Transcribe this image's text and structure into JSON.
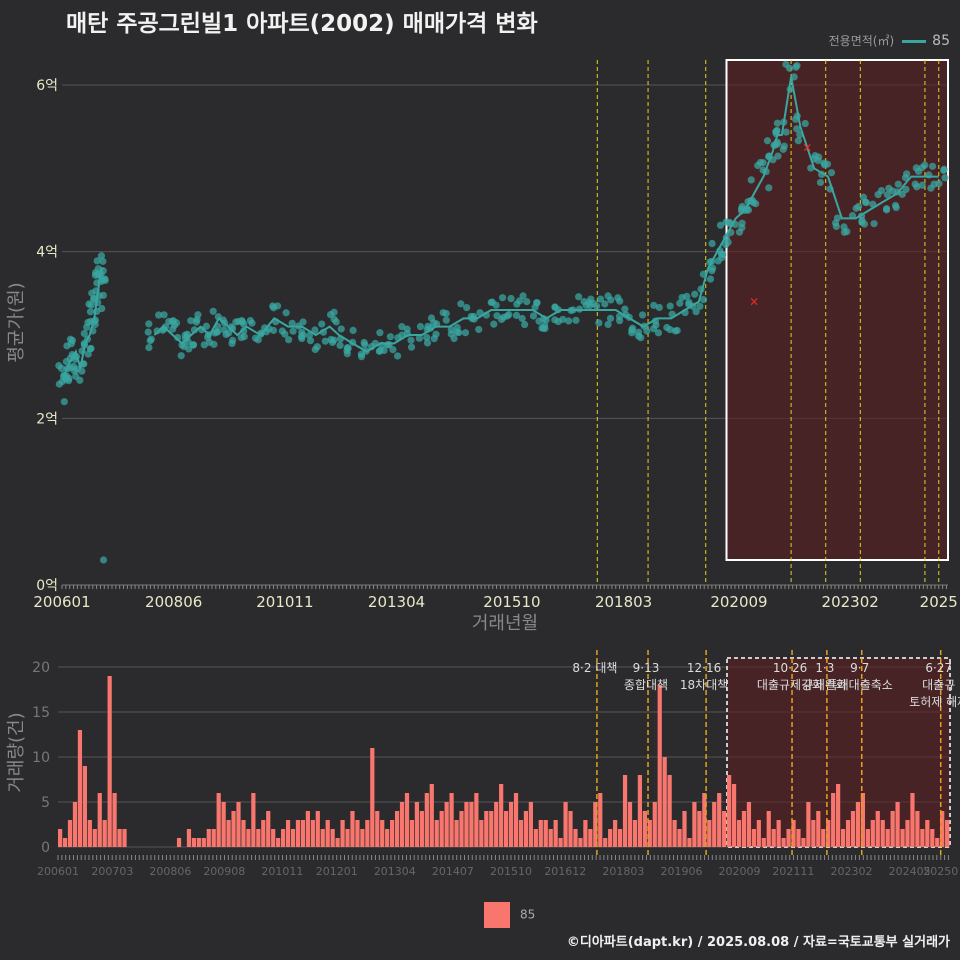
{
  "title": "매탄 주공그린빌1 아파트(2002) 매매가격 변화",
  "legend": {
    "label": "전용면적(㎡)",
    "value": "85"
  },
  "credit": "©디아파트(dapt.kr) / 2025.08.08 / 자료=국토교통부 실거래가",
  "colors": {
    "background": "#2b2b2d",
    "price": "#3aa6a0",
    "volume": "#f8766d",
    "policy": "#e5d21b",
    "highlight_box": "#ffffff",
    "highlight_fill": "#5a1e22",
    "outlier": "#ff2a2a"
  },
  "chart_data": [
    {
      "type": "scatter",
      "title": "매탄 주공그린빌1 아파트(2002) 매매가격 변화",
      "xlabel": "거래년월",
      "ylabel": "평균가(원)",
      "x_tick_labels": [
        "200601",
        "200806",
        "201011",
        "201304",
        "201510",
        "201803",
        "202009",
        "202302",
        "2025"
      ],
      "x_tick_positions": [
        2006.0,
        2008.42,
        2010.83,
        2013.25,
        2015.75,
        2018.17,
        2020.67,
        2023.08,
        2025.0
      ],
      "xlim": [
        2006.0,
        2025.2
      ],
      "ylim": [
        0,
        6.3
      ],
      "y_ticks": [
        0,
        2,
        4,
        6
      ],
      "y_tick_labels": [
        "0억",
        "2억",
        "4억",
        "6억"
      ],
      "series": [
        {
          "name": "85",
          "x": [
            2006.05,
            2006.1,
            2006.2,
            2006.3,
            2006.4,
            2006.5,
            2006.6,
            2006.7,
            2006.75,
            2006.8,
            2006.85,
            2006.9,
            2008.0,
            2008.2,
            2008.4,
            2008.6,
            2008.8,
            2009.0,
            2009.2,
            2009.4,
            2009.6,
            2009.8,
            2010.0,
            2010.3,
            2010.6,
            2010.9,
            2011.2,
            2011.5,
            2011.8,
            2012.0,
            2012.3,
            2012.6,
            2012.9,
            2013.2,
            2013.5,
            2013.8,
            2014.1,
            2014.4,
            2014.7,
            2015.0,
            2015.3,
            2015.6,
            2015.9,
            2016.2,
            2016.5,
            2016.8,
            2017.1,
            2017.4,
            2017.7,
            2018.0,
            2018.3,
            2018.6,
            2018.9,
            2019.2,
            2019.5,
            2019.8,
            2020.0,
            2020.2,
            2020.4,
            2020.6,
            2020.8,
            2021.0,
            2021.2,
            2021.4,
            2021.5,
            2021.6,
            2021.8,
            2022.0,
            2022.3,
            2022.6,
            2022.9,
            2023.2,
            2023.5,
            2023.8,
            2024.1,
            2024.4,
            2024.7,
            2025.0
          ],
          "y": [
            2.5,
            2.6,
            2.7,
            2.8,
            2.6,
            2.9,
            3.0,
            3.2,
            3.4,
            3.6,
            3.8,
            3.8,
            3.0,
            3.1,
            3.0,
            2.9,
            3.0,
            3.1,
            3.0,
            3.2,
            3.1,
            3.0,
            3.1,
            3.0,
            3.2,
            3.1,
            3.1,
            3.0,
            3.1,
            3.0,
            2.9,
            2.8,
            2.9,
            2.9,
            3.0,
            3.0,
            3.1,
            3.1,
            3.2,
            3.2,
            3.3,
            3.3,
            3.3,
            3.3,
            3.2,
            3.3,
            3.3,
            3.3,
            3.3,
            3.3,
            3.2,
            3.1,
            3.2,
            3.2,
            3.3,
            3.4,
            3.8,
            4.0,
            4.2,
            4.4,
            4.5,
            4.7,
            4.9,
            5.2,
            5.4,
            5.4,
            6.1,
            5.5,
            5.0,
            4.9,
            4.4,
            4.4,
            4.5,
            4.6,
            4.7,
            4.9,
            4.9,
            4.9
          ]
        }
      ],
      "outliers": [
        {
          "x": 2006.9,
          "y": 0.3
        },
        {
          "x": 2006.05,
          "y": 2.2
        }
      ],
      "red_markers": [
        {
          "x": 2021.0,
          "y": 3.4
        },
        {
          "x": 2022.15,
          "y": 5.25
        }
      ],
      "highlight_range": {
        "x": [
          2020.4,
          2025.2
        ],
        "y": [
          0.3,
          6.3
        ]
      },
      "policy_lines": [
        2017.6,
        2018.7,
        2019.95,
        2021.8,
        2022.55,
        2023.3,
        2024.7,
        2025.0
      ]
    },
    {
      "type": "bar",
      "xlabel": "",
      "ylabel": "거래량(건)",
      "ylim": [
        0,
        21
      ],
      "y_ticks": [
        0,
        5,
        10,
        15,
        20
      ],
      "x_tick_labels": [
        "200601",
        "200703",
        "200806",
        "200908",
        "201011",
        "201201",
        "201304",
        "201407",
        "201510",
        "201612",
        "201803",
        "201906",
        "202009",
        "202111",
        "202302",
        "202405",
        "20250"
      ],
      "x_tick_positions": [
        2006.0,
        2007.17,
        2008.42,
        2009.58,
        2010.83,
        2012.0,
        2013.25,
        2014.5,
        2015.75,
        2016.92,
        2018.17,
        2019.42,
        2020.67,
        2021.83,
        2023.08,
        2024.33,
        2025.0
      ],
      "xlim": [
        2006.0,
        2025.2
      ],
      "months": [
        2006.0,
        2025.2
      ],
      "values_sample": [
        2,
        1,
        3,
        5,
        13,
        9,
        3,
        2,
        6,
        3,
        19,
        6,
        2,
        2,
        0,
        0,
        0,
        0,
        0,
        0,
        0,
        0,
        0,
        0,
        1,
        0,
        2,
        1,
        1,
        1,
        2,
        2,
        6,
        5,
        3,
        4,
        5,
        3,
        2,
        6,
        2,
        3,
        4,
        2,
        1,
        2,
        3,
        2,
        3,
        3,
        4,
        3,
        4,
        2,
        3,
        2,
        1,
        3,
        2,
        4,
        3,
        2,
        3,
        11,
        4,
        3,
        2,
        3,
        4,
        5,
        6,
        3,
        5,
        4,
        6,
        7,
        3,
        4,
        5,
        6,
        3,
        4,
        5,
        5,
        6,
        3,
        4,
        4,
        5,
        7,
        4,
        5,
        6,
        3,
        4,
        5,
        2,
        3,
        3,
        2,
        3,
        1,
        5,
        4,
        2,
        1,
        3,
        2,
        5,
        6,
        1,
        2,
        3,
        2,
        8,
        5,
        3,
        8,
        4,
        3,
        5,
        18,
        10,
        8,
        3,
        2,
        4,
        1,
        5,
        4,
        6,
        3,
        5,
        6,
        4,
        8,
        7,
        3,
        4,
        5,
        2,
        3,
        1,
        4,
        2,
        3,
        1,
        2,
        3,
        2,
        1,
        5,
        3,
        4,
        2,
        3,
        6,
        7,
        2,
        3,
        4,
        5,
        6,
        2,
        3,
        4,
        3,
        2,
        4,
        5,
        2,
        3,
        6,
        4,
        2,
        3,
        2,
        1,
        4,
        3
      ],
      "policy_labels": [
        {
          "x": 2017.6,
          "lines": [
            "8·2 대책"
          ]
        },
        {
          "x": 2018.7,
          "lines": [
            "9·13",
            "종합대책"
          ]
        },
        {
          "x": 2019.95,
          "lines": [
            "12·16",
            "18차대책"
          ]
        },
        {
          "x": 2021.8,
          "lines": [
            "10·26",
            "대출규제강화"
          ]
        },
        {
          "x": 2022.55,
          "lines": [
            "1·3",
            "규제완화"
          ]
        },
        {
          "x": 2023.3,
          "lines": [
            "9·7",
            "특례대출축소"
          ]
        },
        {
          "x": 2025.0,
          "lines": [
            "6·27",
            "대출규",
            "토허제 해제"
          ]
        }
      ],
      "highlight_range": {
        "x": [
          2020.4,
          2025.2
        ],
        "y": [
          0,
          21
        ]
      },
      "legend": "85"
    }
  ]
}
